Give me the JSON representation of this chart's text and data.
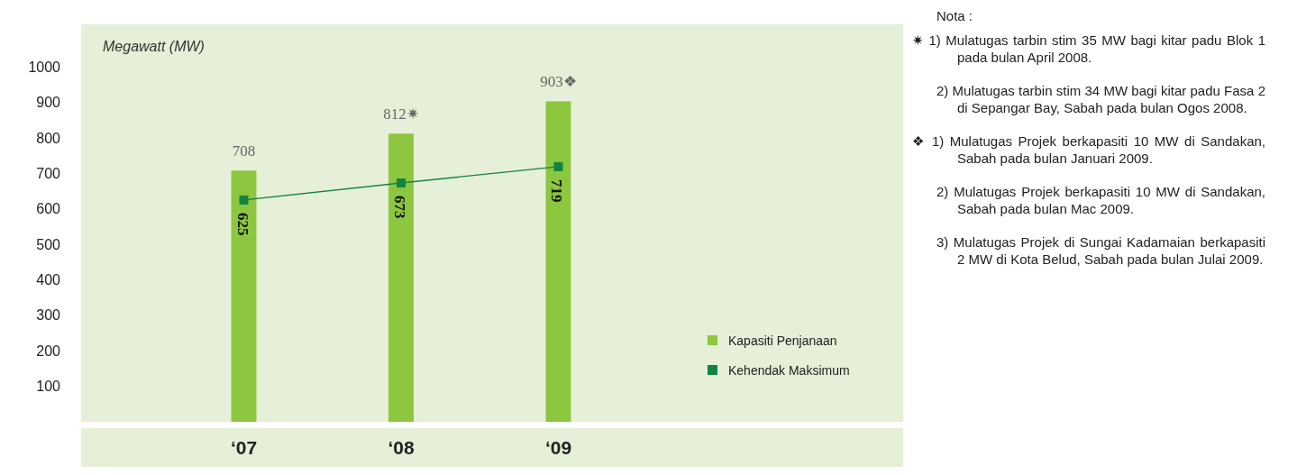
{
  "chart_data": {
    "type": "bar",
    "ylabel": "Megawatt (MW)",
    "categories": [
      "‘07",
      "‘08",
      "‘09"
    ],
    "series": [
      {
        "name": "Kapasiti Penjanaan",
        "color": "#8dc63f",
        "values": [
          708,
          812,
          903
        ],
        "value_labels": [
          "708",
          "812✷",
          "903❖"
        ]
      },
      {
        "name": "Kehendak Maksimum",
        "type": "line",
        "color": "#12843f",
        "values": [
          625,
          673,
          719
        ],
        "value_labels": [
          "625",
          "673",
          "719"
        ],
        "marker": "square"
      }
    ],
    "ylim": [
      0,
      1120
    ],
    "yticks": [
      100,
      200,
      300,
      400,
      500,
      600,
      700,
      800,
      900,
      1000
    ],
    "grid": false,
    "legend": "bottom right",
    "annotations": [
      "Nota :",
      "✷ 1) Mulatugas tarbin stim 35 MW bagi kitar padu Blok 1 pada bulan April 2008.",
      "2) Mulatugas tarbin stim 34 MW bagi kitar padu Fasa 2 di Sepangar Bay, Sabah pada bulan Ogos 2008.",
      "❖ 1) Mulatugas Projek berkapasiti 10 MW di Sandakan, Sabah pada bulan Januari 2009.",
      "2) Mulatugas Projek berkapasiti 10 MW di Sandakan, Sabah pada bulan Mac 2009.",
      "3) Mulatugas Projek di Sungai Kadamaian berkapasiti 2 MW di Kota Belud, Sabah pada bulan Julai 2009."
    ]
  }
}
